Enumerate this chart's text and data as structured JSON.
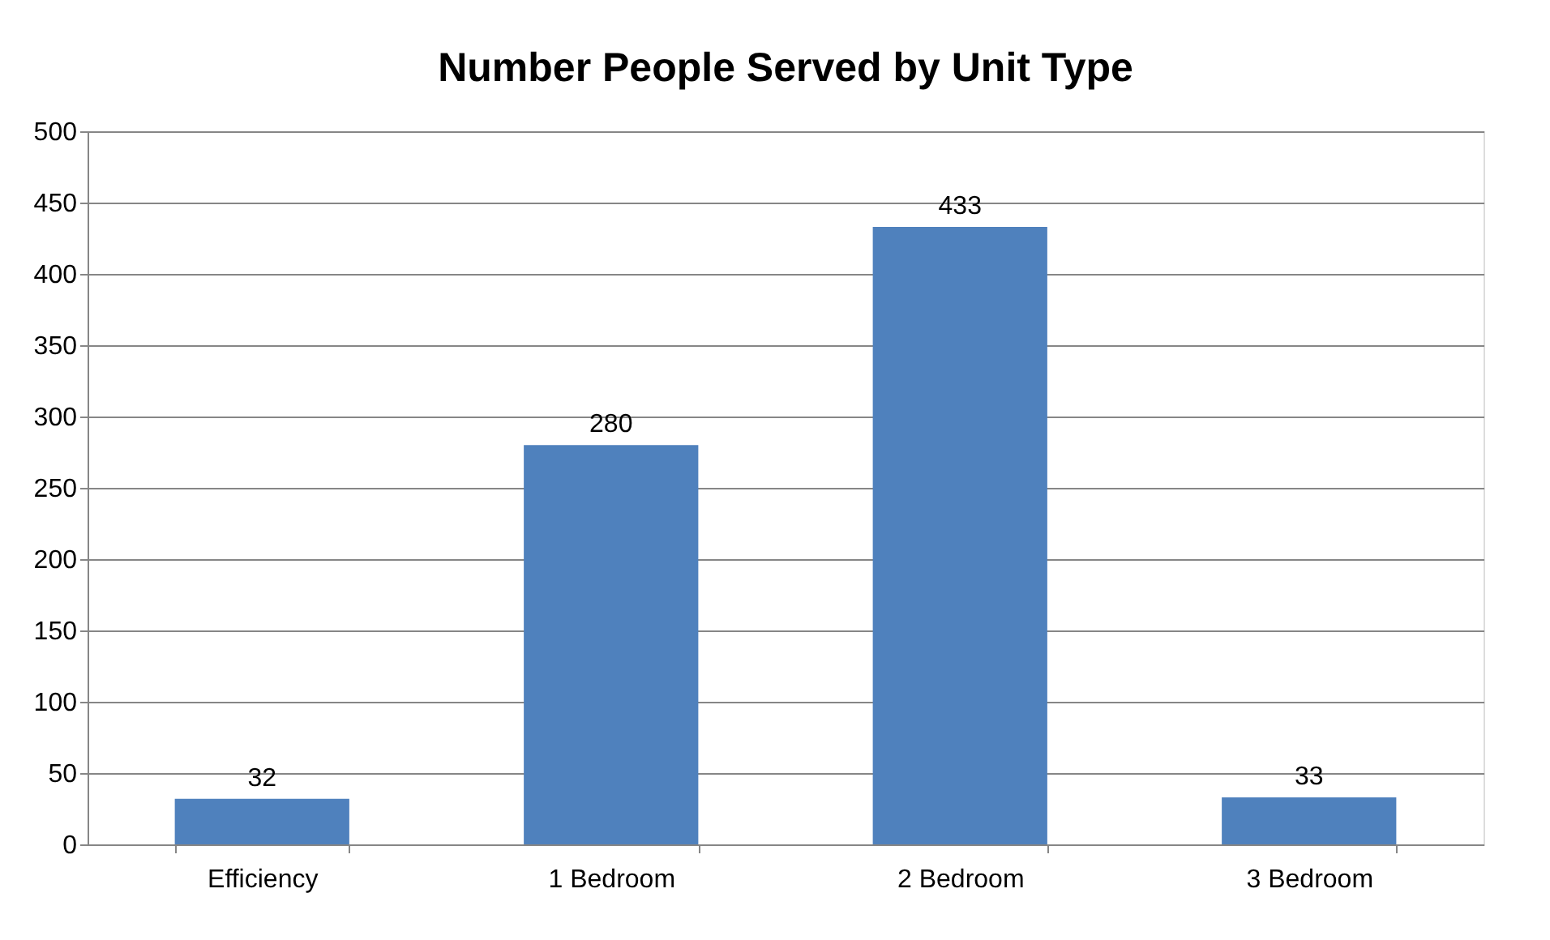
{
  "chart_data": {
    "type": "bar",
    "title": "Number People Served by Unit Type",
    "categories": [
      "Efficiency",
      "1 Bedroom",
      "2 Bedroom",
      "3 Bedroom"
    ],
    "values": [
      32,
      280,
      433,
      33
    ],
    "color": "#4f81bd",
    "ylim": [
      0,
      500
    ],
    "yticks": [
      0,
      50,
      100,
      150,
      200,
      250,
      300,
      350,
      400,
      450,
      500
    ],
    "grid": "y",
    "data_labels": true
  }
}
